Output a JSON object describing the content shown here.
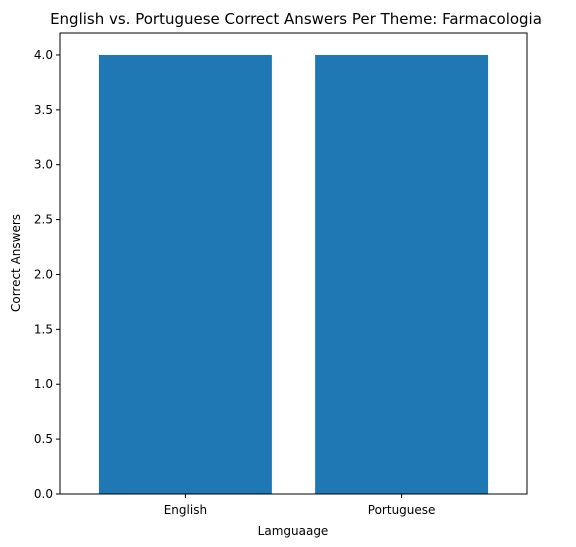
{
  "chart_data": {
    "type": "bar",
    "title": "English vs. Portuguese Correct Answers Per Theme: Farmacologia",
    "xlabel": "Lamguaage",
    "ylabel": "Correct Answers",
    "categories": [
      "English",
      "Portuguese"
    ],
    "values": [
      4.0,
      4.0
    ],
    "ylim": [
      0,
      4.2
    ],
    "yticks": [
      "0.0",
      "0.5",
      "1.0",
      "1.5",
      "2.0",
      "2.5",
      "3.0",
      "3.5",
      "4.0"
    ],
    "bar_color": "#1f77b4",
    "grid": false
  }
}
